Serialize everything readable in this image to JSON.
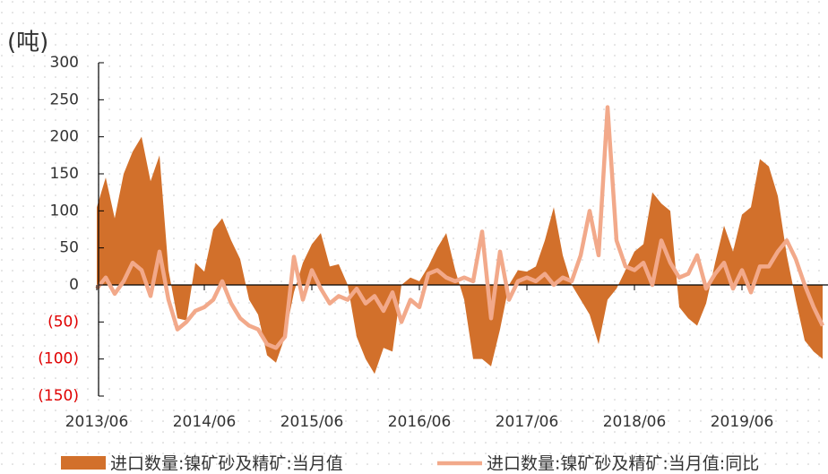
{
  "chart_data": {
    "type": "area-line",
    "y_label": "(吨)",
    "categories": [
      "2013/06",
      null,
      null,
      null,
      null,
      null,
      null,
      null,
      null,
      null,
      null,
      null,
      "2014/06",
      null,
      null,
      null,
      null,
      null,
      null,
      null,
      null,
      null,
      null,
      null,
      "2015/06",
      null,
      null,
      null,
      null,
      null,
      null,
      null,
      null,
      null,
      null,
      null,
      "2016/06",
      null,
      null,
      null,
      null,
      null,
      null,
      null,
      null,
      null,
      null,
      null,
      "2017/06",
      null,
      null,
      null,
      null,
      null,
      null,
      null,
      null,
      null,
      null,
      null,
      "2018/06",
      null,
      null,
      null,
      null,
      null,
      null,
      null,
      null,
      null,
      null,
      null,
      "2019/06",
      null,
      null,
      null,
      null,
      null,
      null,
      null,
      null,
      null
    ],
    "series": [
      {
        "name": "进口数量:镍矿砂及精矿:当月值",
        "kind": "area",
        "color": "#d2702b",
        "values": [
          105,
          145,
          90,
          150,
          180,
          200,
          140,
          175,
          20,
          -45,
          -48,
          30,
          18,
          75,
          90,
          60,
          35,
          -20,
          -40,
          -95,
          -105,
          -70,
          -10,
          30,
          55,
          70,
          25,
          28,
          0,
          -70,
          -100,
          -120,
          -85,
          -90,
          0,
          10,
          5,
          25,
          50,
          70,
          20,
          -20,
          -100,
          -100,
          -110,
          -60,
          0,
          20,
          18,
          25,
          60,
          105,
          40,
          0,
          -20,
          -40,
          -80,
          -20,
          -5,
          20,
          45,
          55,
          125,
          110,
          100,
          -30,
          -45,
          -55,
          -25,
          30,
          80,
          45,
          95,
          105,
          170,
          160,
          120,
          40,
          -20,
          -75,
          -90,
          -100
        ]
      },
      {
        "name": "进口数量:镍矿砂及精矿:当月值:同比",
        "kind": "line",
        "color": "#f2a98a",
        "values": [
          -5,
          10,
          -12,
          5,
          30,
          20,
          -15,
          45,
          -20,
          -60,
          -50,
          -35,
          -30,
          -20,
          5,
          -25,
          -45,
          -55,
          -60,
          -80,
          -85,
          -70,
          38,
          -20,
          20,
          -5,
          -25,
          -15,
          -20,
          -5,
          -25,
          -15,
          -35,
          -10,
          -50,
          -20,
          -30,
          15,
          20,
          10,
          5,
          10,
          5,
          72,
          -45,
          45,
          -20,
          5,
          10,
          5,
          15,
          0,
          10,
          5,
          40,
          100,
          40,
          240,
          60,
          25,
          20,
          30,
          0,
          60,
          30,
          10,
          15,
          40,
          -5,
          15,
          30,
          -5,
          20,
          -10,
          25,
          25,
          45,
          60,
          35,
          0,
          -30,
          -55
        ]
      }
    ],
    "ylim": [
      -150,
      300
    ],
    "yticks": [
      {
        "value": -150,
        "label": "(150)"
      },
      {
        "value": -100,
        "label": "(100)"
      },
      {
        "value": -50,
        "label": "(50)"
      },
      0,
      50,
      100,
      150,
      200,
      250,
      300
    ],
    "negative_tick_color": "#e00000",
    "legend": "bottom"
  }
}
